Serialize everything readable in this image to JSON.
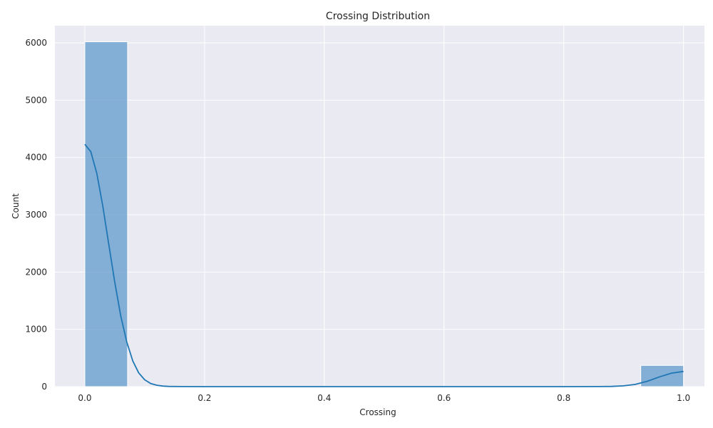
{
  "chart_data": {
    "type": "bar",
    "title": "Crossing Distribution",
    "xlabel": "Crossing",
    "ylabel": "Count",
    "xlim": [
      -0.05,
      1.035
    ],
    "ylim": [
      0,
      6300
    ],
    "xticks": [
      0.0,
      0.2,
      0.4,
      0.6,
      0.8,
      1.0
    ],
    "xtick_labels": [
      "0.0",
      "0.2",
      "0.4",
      "0.6",
      "0.8",
      "1.0"
    ],
    "yticks": [
      0,
      1000,
      2000,
      3000,
      4000,
      5000,
      6000
    ],
    "ytick_labels": [
      "0",
      "1000",
      "2000",
      "3000",
      "4000",
      "5000",
      "6000"
    ],
    "grid": true,
    "colors": {
      "bar": "#4c8ec4",
      "kde": "#1f77b4",
      "background": "#eaeaf2",
      "grid": "#ffffff"
    },
    "bins": [
      {
        "x0": 0.0,
        "x1": 0.0714,
        "count": 6020
      },
      {
        "x0": 0.9286,
        "x1": 1.0,
        "count": 370
      }
    ],
    "kde": {
      "x": [
        0.0,
        0.01,
        0.02,
        0.03,
        0.04,
        0.05,
        0.06,
        0.07,
        0.08,
        0.09,
        0.1,
        0.11,
        0.12,
        0.13,
        0.14,
        0.16,
        0.2,
        0.4,
        0.6,
        0.8,
        0.86,
        0.88,
        0.9,
        0.92,
        0.94,
        0.96,
        0.98,
        1.0
      ],
      "y": [
        4230,
        4100,
        3720,
        3150,
        2480,
        1820,
        1230,
        780,
        450,
        240,
        120,
        55,
        25,
        10,
        4,
        1,
        0,
        0,
        0,
        0,
        1,
        4,
        14,
        40,
        95,
        170,
        235,
        265
      ]
    }
  }
}
